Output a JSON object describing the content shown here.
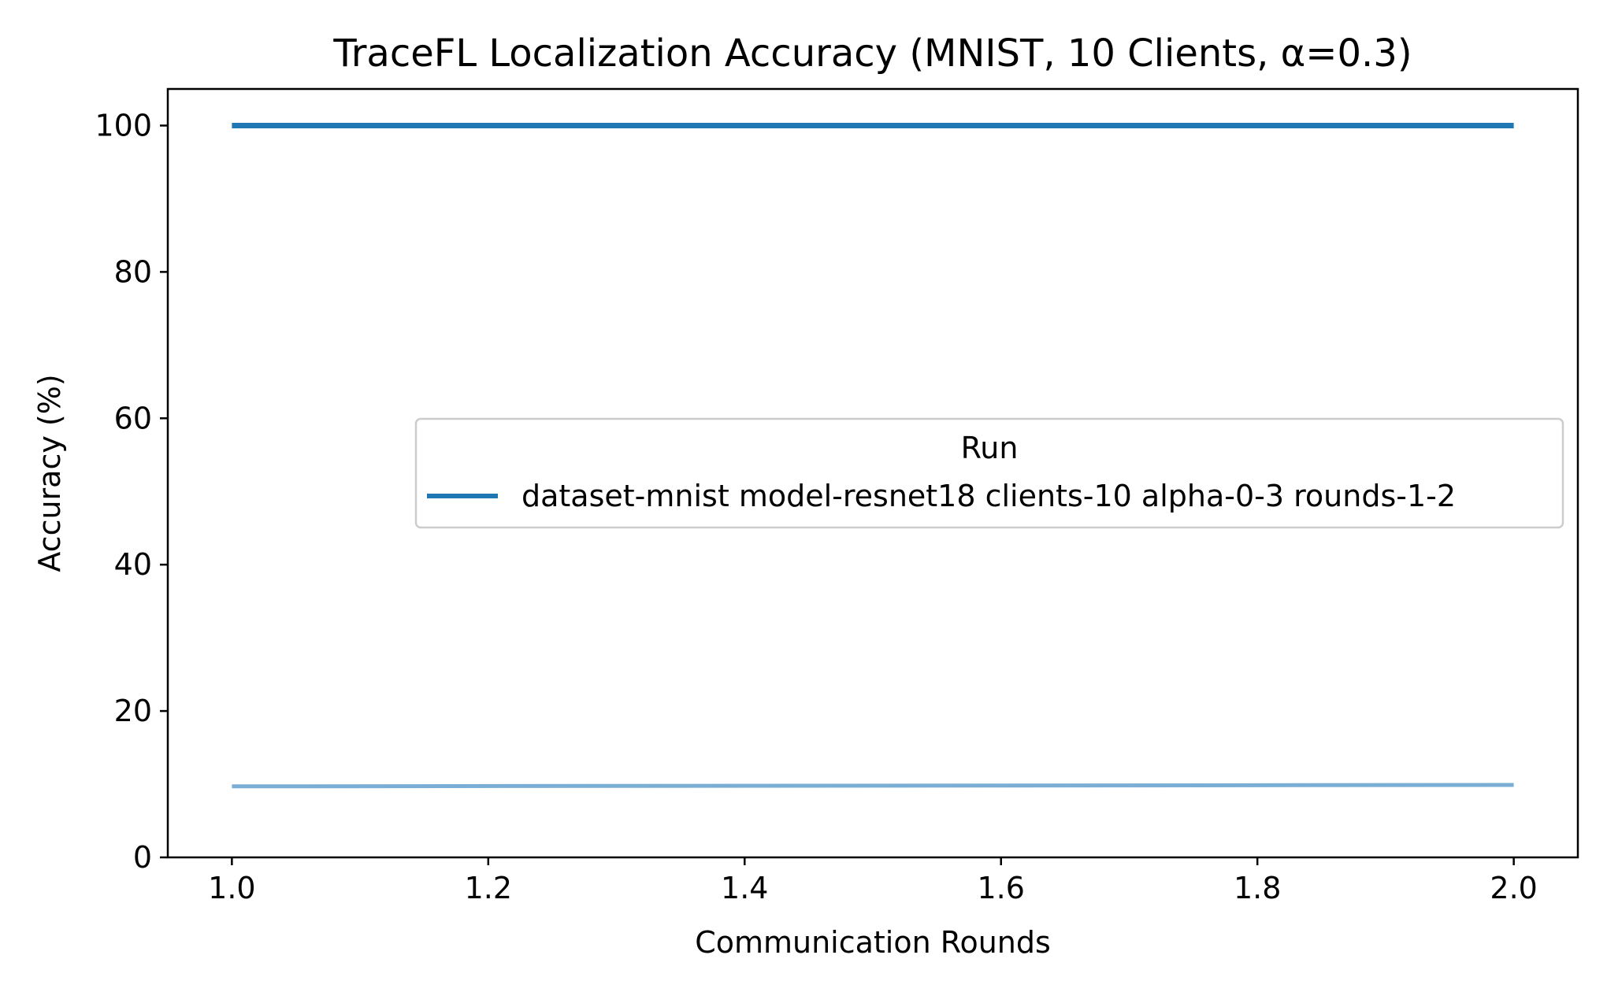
{
  "chart_data": {
    "type": "line",
    "title": "TraceFL Localization Accuracy (MNIST, 10 Clients, α=0.3)",
    "xlabel": "Communication Rounds",
    "ylabel": "Accuracy (%)",
    "xlim": [
      0.95,
      2.05
    ],
    "ylim": [
      0,
      105
    ],
    "xticks": [
      "1.0",
      "1.2",
      "1.4",
      "1.6",
      "1.8",
      "2.0"
    ],
    "yticks": [
      "0",
      "20",
      "40",
      "60",
      "80",
      "100"
    ],
    "grid": false,
    "legend": {
      "title": "Run",
      "placement": "center-right",
      "entries": [
        "dataset-mnist model-resnet18 clients-10 alpha-0-3 rounds-1-2"
      ]
    },
    "series": [
      {
        "name": "dataset-mnist model-resnet18 clients-10 alpha-0-3 rounds-1-2",
        "x": [
          1.0,
          2.0
        ],
        "values": [
          100,
          100
        ],
        "color": "#1f77b4"
      },
      {
        "x": [
          1.0,
          2.0
        ],
        "values": [
          9.7,
          9.9
        ],
        "color": "#7aaed5"
      }
    ]
  }
}
